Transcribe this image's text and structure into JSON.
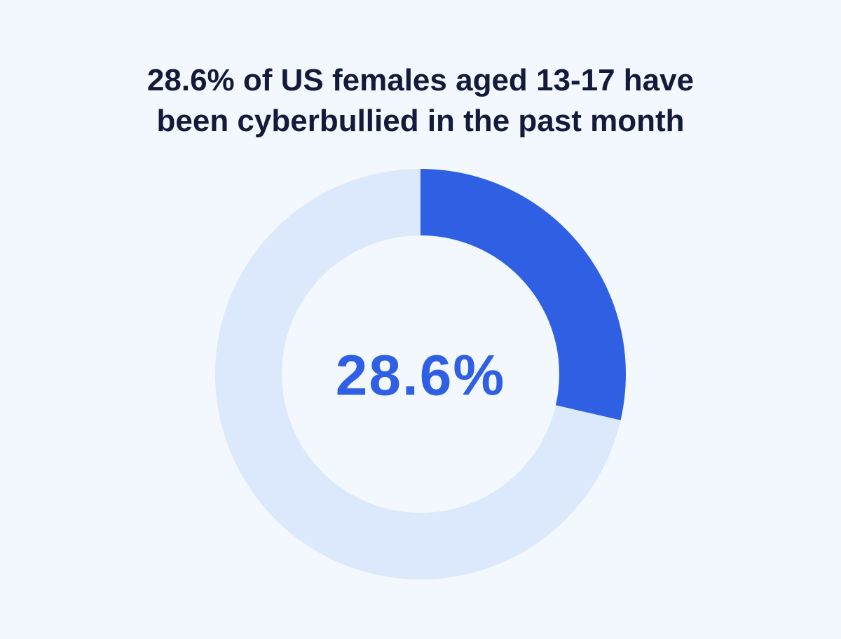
{
  "chart_data": {
    "type": "donut",
    "title": "28.6% of US females aged 13-17 have been cyberbullied in the past month",
    "values": [
      28.6,
      71.4
    ],
    "value_labels": [
      "28.6%",
      null
    ],
    "colors": [
      "#2f5fe3",
      "#dce8fb"
    ]
  }
}
